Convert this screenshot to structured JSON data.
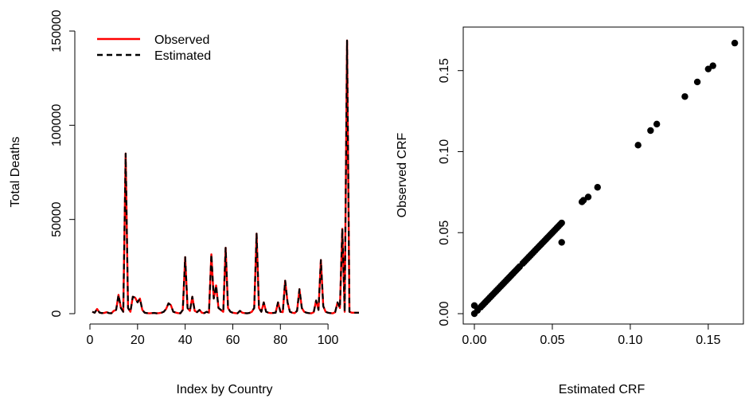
{
  "chart_data": [
    {
      "type": "line",
      "xlabel": "Index by Country",
      "ylabel": "Total Deaths",
      "xlim": [
        0,
        113
      ],
      "ylim": [
        0,
        150000
      ],
      "xticks": [
        "0",
        "20",
        "40",
        "60",
        "80",
        "100"
      ],
      "yticks": [
        "0",
        "50000",
        "100000",
        "150000"
      ],
      "legend_position": "top-left",
      "x": [
        1,
        2,
        3,
        4,
        5,
        6,
        7,
        8,
        9,
        10,
        11,
        12,
        13,
        14,
        15,
        16,
        17,
        18,
        19,
        20,
        21,
        22,
        23,
        24,
        25,
        26,
        27,
        28,
        29,
        30,
        31,
        32,
        33,
        34,
        35,
        36,
        37,
        38,
        39,
        40,
        41,
        42,
        43,
        44,
        45,
        46,
        47,
        48,
        49,
        50,
        51,
        52,
        53,
        54,
        55,
        56,
        57,
        58,
        59,
        60,
        61,
        62,
        63,
        64,
        65,
        66,
        67,
        68,
        69,
        70,
        71,
        72,
        73,
        74,
        75,
        76,
        77,
        78,
        79,
        80,
        81,
        82,
        83,
        84,
        85,
        86,
        87,
        88,
        89,
        90,
        91,
        92,
        93,
        94,
        95,
        96,
        97,
        98,
        99,
        100,
        101,
        102,
        103,
        104,
        105,
        106,
        107,
        108,
        109,
        110,
        111,
        112,
        113
      ],
      "series": [
        {
          "name": "Observed",
          "color": "#ff0000",
          "line_style": "solid",
          "values": [
            1000,
            500,
            2500,
            600,
            300,
            400,
            800,
            300,
            200,
            1500,
            2000,
            10000,
            3000,
            1000,
            85000,
            3000,
            1000,
            9000,
            8500,
            6000,
            8000,
            2000,
            500,
            300,
            200,
            300,
            400,
            200,
            300,
            500,
            1000,
            2500,
            5500,
            4500,
            1000,
            600,
            300,
            200,
            2000,
            30000,
            3000,
            1500,
            9000,
            1500,
            800,
            2000,
            500,
            300,
            1000,
            500,
            31500,
            8000,
            15000,
            3000,
            2000,
            1000,
            35000,
            3000,
            1000,
            500,
            300,
            200,
            1500,
            500,
            300,
            200,
            400,
            1000,
            3000,
            42500,
            3000,
            1000,
            6000,
            1000,
            500,
            300,
            400,
            500,
            6000,
            1000,
            800,
            17500,
            6000,
            1000,
            500,
            300,
            1500,
            13000,
            3000,
            1000,
            500,
            300,
            200,
            800,
            7000,
            2000,
            28500,
            4000,
            1000,
            500,
            300,
            200,
            800,
            6000,
            3000,
            45000,
            1000,
            145000,
            1000,
            500,
            500,
            500,
            500
          ],
          "note_values_read_from_plot": true
        },
        {
          "name": "Estimated",
          "color": "#000000",
          "line_style": "dashed",
          "values": [
            1000,
            500,
            2500,
            600,
            300,
            400,
            800,
            300,
            200,
            1500,
            2000,
            10000,
            3000,
            1000,
            85000,
            3000,
            1000,
            9000,
            8500,
            6000,
            8000,
            2000,
            500,
            300,
            200,
            300,
            400,
            200,
            300,
            500,
            1000,
            2500,
            5500,
            4500,
            1000,
            600,
            300,
            200,
            2000,
            30000,
            3000,
            1500,
            9000,
            1500,
            800,
            2000,
            500,
            300,
            1000,
            500,
            31500,
            8000,
            15000,
            3000,
            2000,
            1000,
            35000,
            3000,
            1000,
            500,
            300,
            200,
            1500,
            500,
            300,
            200,
            400,
            1000,
            3000,
            42500,
            3000,
            1000,
            6000,
            1000,
            500,
            300,
            400,
            500,
            6000,
            1000,
            800,
            17500,
            6000,
            1000,
            500,
            300,
            1500,
            13000,
            3000,
            1000,
            500,
            300,
            200,
            800,
            7000,
            2000,
            28500,
            4000,
            1000,
            500,
            300,
            200,
            800,
            6000,
            3000,
            45000,
            1000,
            145000,
            1000,
            500,
            500,
            500,
            500
          ]
        }
      ]
    },
    {
      "type": "scatter",
      "xlabel": "Estimated CRF",
      "ylabel": "Observed CRF",
      "xlim": [
        0,
        0.17
      ],
      "ylim": [
        0,
        0.17
      ],
      "xticks": [
        "0.00",
        "0.05",
        "0.10",
        "0.15"
      ],
      "yticks": [
        "0.00",
        "0.05",
        "0.10",
        "0.15"
      ],
      "point_color": "#000000",
      "points": [
        [
          0.0,
          0.0
        ],
        [
          0.0,
          0.005
        ],
        [
          0.002,
          0.002
        ],
        [
          0.004,
          0.004
        ],
        [
          0.005,
          0.005
        ],
        [
          0.006,
          0.006
        ],
        [
          0.007,
          0.007
        ],
        [
          0.008,
          0.008
        ],
        [
          0.009,
          0.009
        ],
        [
          0.01,
          0.01
        ],
        [
          0.011,
          0.011
        ],
        [
          0.012,
          0.012
        ],
        [
          0.013,
          0.013
        ],
        [
          0.014,
          0.014
        ],
        [
          0.015,
          0.015
        ],
        [
          0.016,
          0.016
        ],
        [
          0.017,
          0.017
        ],
        [
          0.018,
          0.018
        ],
        [
          0.019,
          0.019
        ],
        [
          0.02,
          0.02
        ],
        [
          0.021,
          0.021
        ],
        [
          0.022,
          0.022
        ],
        [
          0.023,
          0.023
        ],
        [
          0.024,
          0.024
        ],
        [
          0.025,
          0.025
        ],
        [
          0.026,
          0.026
        ],
        [
          0.027,
          0.027
        ],
        [
          0.028,
          0.028
        ],
        [
          0.029,
          0.029
        ],
        [
          0.031,
          0.031
        ],
        [
          0.032,
          0.032
        ],
        [
          0.033,
          0.033
        ],
        [
          0.034,
          0.034
        ],
        [
          0.035,
          0.035
        ],
        [
          0.036,
          0.036
        ],
        [
          0.037,
          0.037
        ],
        [
          0.038,
          0.038
        ],
        [
          0.039,
          0.039
        ],
        [
          0.04,
          0.04
        ],
        [
          0.041,
          0.041
        ],
        [
          0.042,
          0.042
        ],
        [
          0.043,
          0.043
        ],
        [
          0.044,
          0.044
        ],
        [
          0.045,
          0.045
        ],
        [
          0.046,
          0.046
        ],
        [
          0.047,
          0.047
        ],
        [
          0.048,
          0.048
        ],
        [
          0.049,
          0.049
        ],
        [
          0.05,
          0.05
        ],
        [
          0.051,
          0.051
        ],
        [
          0.052,
          0.052
        ],
        [
          0.053,
          0.053
        ],
        [
          0.054,
          0.054
        ],
        [
          0.055,
          0.055
        ],
        [
          0.056,
          0.056
        ],
        [
          0.056,
          0.044
        ],
        [
          0.069,
          0.069
        ],
        [
          0.07,
          0.07
        ],
        [
          0.073,
          0.072
        ],
        [
          0.079,
          0.078
        ],
        [
          0.105,
          0.104
        ],
        [
          0.113,
          0.113
        ],
        [
          0.117,
          0.117
        ],
        [
          0.135,
          0.134
        ],
        [
          0.143,
          0.143
        ],
        [
          0.15,
          0.151
        ],
        [
          0.153,
          0.153
        ],
        [
          0.167,
          0.167
        ]
      ]
    }
  ]
}
